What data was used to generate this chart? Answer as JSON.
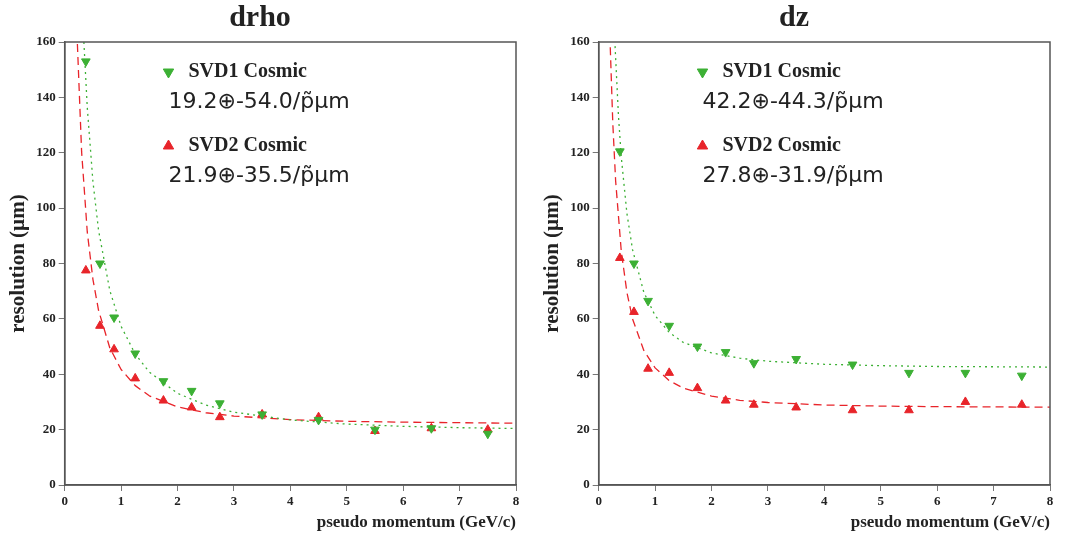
{
  "chart_data": [
    {
      "type": "scatter",
      "title": "drho",
      "xlabel": "pseudo momentum (GeV/c)",
      "ylabel": "resolution (µm)",
      "xlim": [
        0,
        8
      ],
      "ylim": [
        0,
        160
      ],
      "xticks": [
        0,
        1,
        2,
        3,
        4,
        5,
        6,
        7,
        8
      ],
      "yticks": [
        0,
        20,
        40,
        60,
        80,
        100,
        120,
        140,
        160
      ],
      "grid": false,
      "legend": "top",
      "annotations": [
        "19.2⊕-54.0/p̃µm",
        "21.9⊕-35.5/p̃µm"
      ],
      "x": [
        0.375,
        0.625,
        0.875,
        1.25,
        1.75,
        2.25,
        2.75,
        3.5,
        4.5,
        5.5,
        6.5,
        7.5
      ],
      "series": [
        {
          "name": "SVD1 Cosmic",
          "color": "#3cb034",
          "marker": "triangle-down",
          "values": [
            153,
            80,
            60.5,
            47.5,
            37.5,
            34,
            29.5,
            25.5,
            23.5,
            20,
            20.5,
            18.5
          ]
        },
        {
          "name": "SVD2 Cosmic",
          "color": "#e8242a",
          "marker": "triangle",
          "values": [
            77.5,
            57.5,
            49,
            38.5,
            30.5,
            28,
            24.5,
            25.5,
            24.5,
            19.5,
            20.5,
            20
          ]
        },
        {
          "type": "line",
          "color": "#3cb034",
          "line_style": "dotted",
          "marker": "none",
          "x": [
            0.34,
            0.4,
            0.5,
            0.6,
            0.8,
            1,
            1.25,
            1.5,
            2,
            2.5,
            3,
            4,
            5,
            6,
            7,
            8
          ],
          "values": [
            160,
            136.4,
            109.7,
            92,
            70.2,
            57.3,
            47.3,
            40.8,
            33.1,
            28.9,
            26.3,
            23.5,
            22,
            21.2,
            20.7,
            20.4
          ]
        },
        {
          "type": "line",
          "color": "#e8242a",
          "line_style": "dashed",
          "marker": "none",
          "x": [
            0.225,
            0.3,
            0.4,
            0.5,
            0.6,
            0.8,
            1,
            1.25,
            1.5,
            2,
            2.5,
            3,
            4,
            5,
            6,
            7,
            8
          ],
          "values": [
            159.3,
            120.3,
            91.4,
            74.3,
            63.1,
            49.5,
            41.7,
            35.9,
            32.2,
            28.2,
            26.1,
            24.9,
            23.6,
            23,
            22.7,
            22.5,
            22.3
          ]
        }
      ]
    },
    {
      "type": "scatter",
      "title": "dz",
      "xlabel": "pseudo momentum (GeV/c)",
      "ylabel": "resolution (µm)",
      "xlim": [
        0,
        8
      ],
      "ylim": [
        0,
        160
      ],
      "xticks": [
        0,
        1,
        2,
        3,
        4,
        5,
        6,
        7,
        8
      ],
      "yticks": [
        0,
        20,
        40,
        60,
        80,
        100,
        120,
        140,
        160
      ],
      "grid": false,
      "legend": "top",
      "annotations": [
        "42.2⊕-44.3/p̃µm",
        "27.8⊕-31.9/p̃µm"
      ],
      "x": [
        0.375,
        0.625,
        0.875,
        1.25,
        1.75,
        2.25,
        2.75,
        3.5,
        4.5,
        5.5,
        6.5,
        7.5
      ],
      "series": [
        {
          "name": "SVD1 Cosmic",
          "color": "#3cb034",
          "marker": "triangle-down",
          "values": [
            120.5,
            80,
            66.5,
            57.5,
            50,
            48,
            44,
            45.5,
            43.5,
            40.5,
            40.5,
            39.5
          ]
        },
        {
          "name": "SVD2 Cosmic",
          "color": "#e8242a",
          "marker": "triangle",
          "values": [
            82,
            62.5,
            42,
            40.5,
            35,
            30.5,
            29,
            28,
            27,
            27,
            30,
            29
          ]
        },
        {
          "type": "line",
          "color": "#3cb034",
          "line_style": "dotted",
          "marker": "none",
          "x": [
            0.29,
            0.35,
            0.4,
            0.5,
            0.6,
            0.8,
            1,
            1.25,
            1.5,
            2,
            2.5,
            3,
            4,
            5,
            6,
            7,
            8
          ],
          "values": [
            158.5,
            133.4,
            118.5,
            98.1,
            85,
            69.6,
            61.2,
            55.1,
            51.5,
            47.7,
            45.8,
            44.7,
            43.6,
            43.1,
            42.8,
            42.7,
            42.6
          ]
        },
        {
          "type": "line",
          "color": "#e8242a",
          "line_style": "dashed",
          "marker": "none",
          "x": [
            0.205,
            0.25,
            0.3,
            0.4,
            0.5,
            0.6,
            0.8,
            1,
            1.25,
            1.5,
            2,
            2.5,
            3,
            4,
            5,
            6,
            7,
            8
          ],
          "values": [
            158.1,
            130.6,
            109.9,
            84.5,
            69.6,
            60,
            48.6,
            42.3,
            37.7,
            35,
            32.1,
            30.6,
            29.8,
            28.9,
            28.5,
            28.3,
            28.2,
            28.1
          ]
        }
      ]
    }
  ]
}
